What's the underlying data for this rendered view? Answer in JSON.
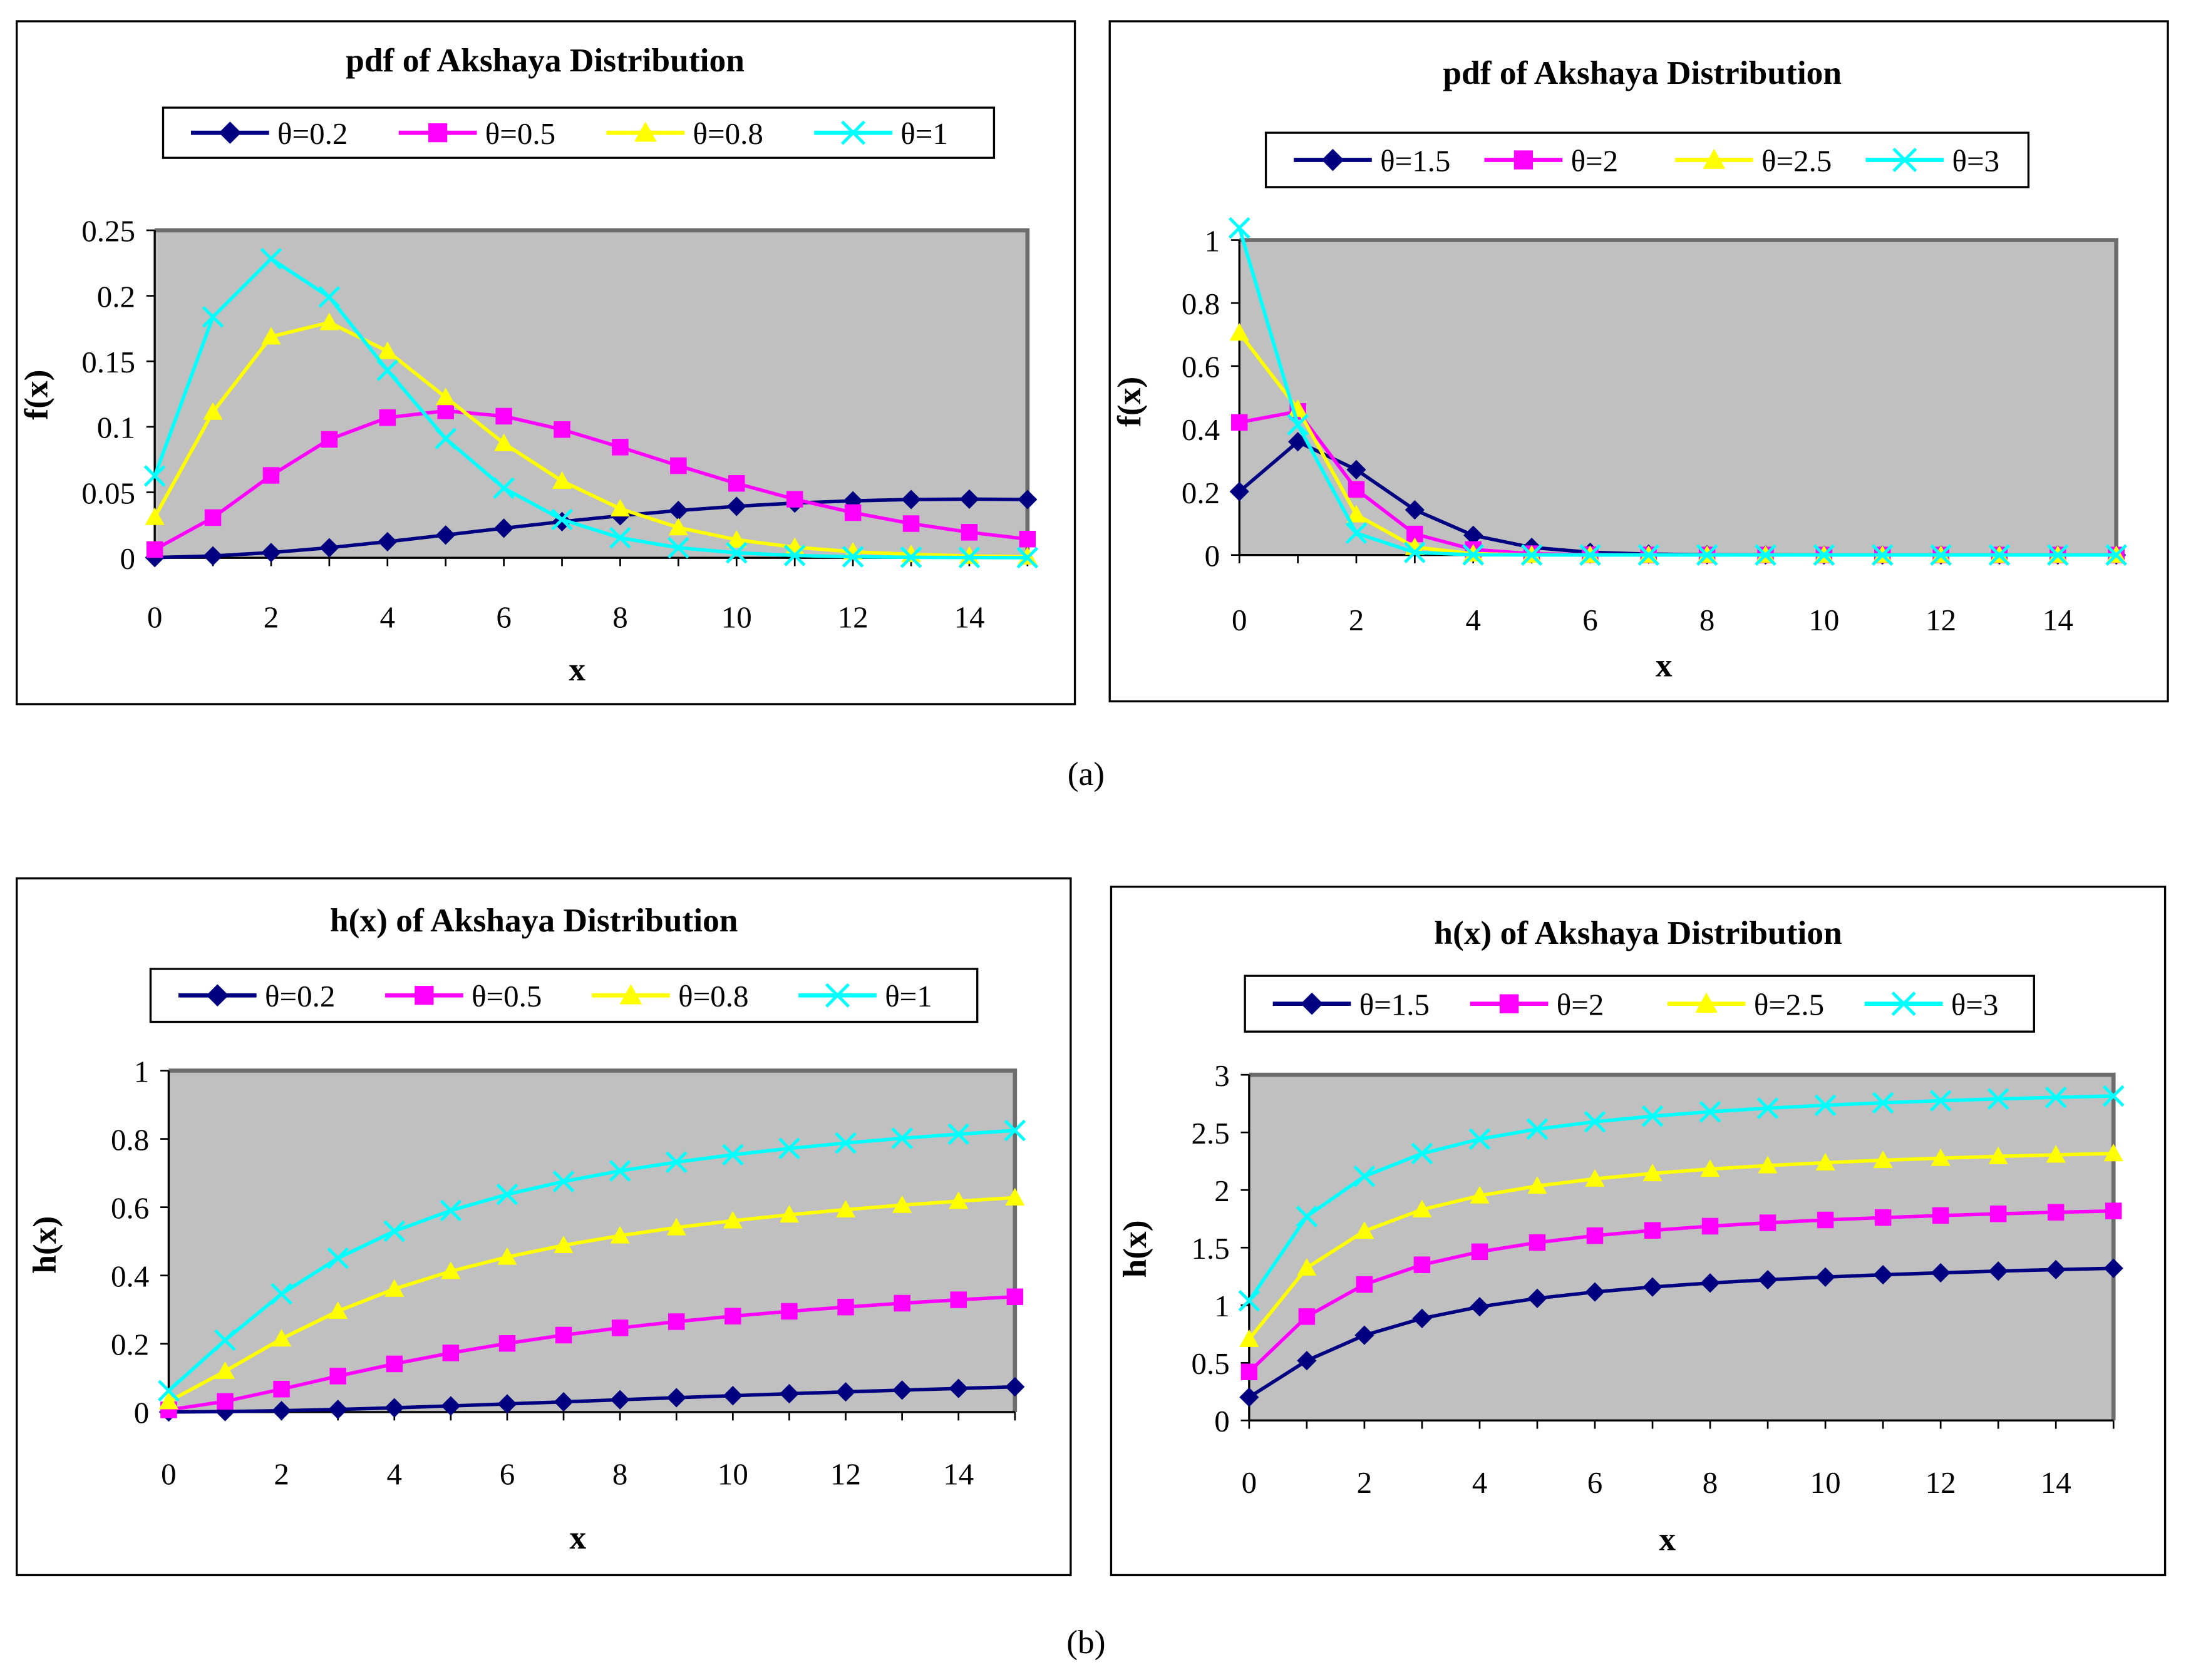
{
  "figure_labels": {
    "a": "(a)",
    "b": "(b)"
  },
  "colors": {
    "series": [
      "#000080",
      "#FF00FF",
      "#FFFF00",
      "#00FFFF"
    ],
    "plot_bg": "#C0C0C0"
  },
  "chart_data": [
    {
      "type": "line",
      "title": "pdf of Akshaya Distribution",
      "xlabel": "x",
      "ylabel": "f(x)",
      "xlim": [
        0,
        15
      ],
      "ylim": [
        0,
        0.25
      ],
      "xticks": [
        "0",
        "2",
        "4",
        "6",
        "8",
        "10",
        "12",
        "14"
      ],
      "yticks": [
        "0",
        "0.05",
        "0.1",
        "0.15",
        "0.2",
        "0.25"
      ],
      "legend": "top",
      "x": [
        0,
        1,
        2,
        3,
        4,
        5,
        6,
        7,
        8,
        9,
        10,
        11,
        12,
        13,
        14,
        15
      ],
      "series": [
        {
          "name": "θ=0.2",
          "marker": "diamond",
          "values": [
            0.0002,
            0.0014,
            0.004,
            0.0077,
            0.0123,
            0.0174,
            0.0226,
            0.0276,
            0.0321,
            0.0361,
            0.0393,
            0.0418,
            0.0435,
            0.0445,
            0.0448,
            0.0445
          ]
        },
        {
          "name": "θ=0.5",
          "marker": "square",
          "values": [
            0.0063,
            0.0307,
            0.0629,
            0.0904,
            0.107,
            0.1122,
            0.1081,
            0.0979,
            0.0845,
            0.0703,
            0.0568,
            0.0447,
            0.0345,
            0.0261,
            0.0195,
            0.0143
          ]
        },
        {
          "name": "θ=0.8",
          "marker": "triangle",
          "values": [
            0.031,
            0.1113,
            0.1688,
            0.1797,
            0.1577,
            0.1225,
            0.0874,
            0.0586,
            0.0375,
            0.0231,
            0.0138,
            0.0081,
            0.0046,
            0.0026,
            0.0014,
            0.0008
          ]
        },
        {
          "name": "θ=1",
          "marker": "x",
          "values": [
            0.0625,
            0.1839,
            0.2283,
            0.1991,
            0.1431,
            0.091,
            0.0532,
            0.0292,
            0.0153,
            0.0077,
            0.0038,
            0.0018,
            0.0008,
            0.0004,
            0.0002,
            0.0001
          ]
        }
      ]
    },
    {
      "type": "line",
      "title": "pdf of Akshaya Distribution",
      "xlabel": "x",
      "ylabel": "f(x)",
      "xlim": [
        0,
        15
      ],
      "ylim": [
        0,
        1
      ],
      "xticks": [
        "0",
        "2",
        "4",
        "6",
        "8",
        "10",
        "12",
        "14"
      ],
      "yticks": [
        "0",
        "0.2",
        "0.4",
        "0.6",
        "0.8",
        "1"
      ],
      "legend": "top",
      "x": [
        0,
        1,
        2,
        3,
        4,
        5,
        6,
        7,
        8,
        9,
        10,
        11,
        12,
        13,
        14,
        15
      ],
      "series": [
        {
          "name": "θ=1.5",
          "marker": "diamond",
          "values": [
            0.2015,
            0.3597,
            0.2709,
            0.1433,
            0.0624,
            0.0241,
            0.0085,
            0.0028,
            0.0009,
            0.0003,
            0.0001,
            0,
            0,
            0,
            0,
            0
          ]
        },
        {
          "name": "θ=2",
          "marker": "square",
          "values": [
            0.4211,
            0.4559,
            0.2083,
            0.0668,
            0.0176,
            0.0041,
            0.0009,
            0.0002,
            0,
            0,
            0,
            0,
            0,
            0,
            0,
            0
          ]
        },
        {
          "name": "θ=2.5",
          "marker": "triangle",
          "values": [
            0.7054,
            0.4632,
            0.1283,
            0.025,
            0.004,
            0.0006,
            0.0001,
            0,
            0,
            0,
            0,
            0,
            0,
            0,
            0,
            0
          ]
        },
        {
          "name": "θ=3",
          "marker": "x",
          "values": [
            1.0385,
            0.4136,
            0.0695,
            0.0082,
            0.0008,
            0.0001,
            0,
            0,
            0,
            0,
            0,
            0,
            0,
            0,
            0,
            0
          ]
        }
      ]
    },
    {
      "type": "line",
      "title": "h(x) of Akshaya Distribution",
      "xlabel": "x",
      "ylabel": "h(x)",
      "xlim": [
        0,
        15
      ],
      "ylim": [
        0,
        1
      ],
      "xticks": [
        "0",
        "2",
        "4",
        "6",
        "8",
        "10",
        "12",
        "14"
      ],
      "yticks": [
        "0",
        "0.2",
        "0.4",
        "0.6",
        "0.8",
        "1"
      ],
      "legend": "top",
      "x": [
        0,
        1,
        2,
        3,
        4,
        5,
        6,
        7,
        8,
        9,
        10,
        11,
        12,
        13,
        14,
        15
      ],
      "series": [
        {
          "name": "θ=0.2",
          "marker": "diamond",
          "values": [
            0.0002,
            0.0014,
            0.004,
            0.0077,
            0.0125,
            0.018,
            0.0238,
            0.0299,
            0.0361,
            0.0421,
            0.048,
            0.0537,
            0.0591,
            0.0643,
            0.0692,
            0.0739
          ]
        },
        {
          "name": "θ=0.5",
          "marker": "square",
          "values": [
            0.0063,
            0.0313,
            0.0672,
            0.1053,
            0.1411,
            0.1731,
            0.2011,
            0.2254,
            0.2465,
            0.2648,
            0.2809,
            0.2951,
            0.3076,
            0.3188,
            0.3288,
            0.3377
          ]
        },
        {
          "name": "θ=0.8",
          "marker": "triangle",
          "values": [
            0.031,
            0.1197,
            0.2147,
            0.2956,
            0.3606,
            0.4124,
            0.4542,
            0.4884,
            0.5166,
            0.5404,
            0.5605,
            0.5779,
            0.5929,
            0.6061,
            0.6177,
            0.628
          ]
        },
        {
          "name": "θ=1",
          "marker": "x",
          "values": [
            0.0625,
            0.2105,
            0.3462,
            0.4507,
            0.5297,
            0.5902,
            0.6375,
            0.6755,
            0.7064,
            0.7321,
            0.7537,
            0.7721,
            0.788,
            0.8019,
            0.814,
            0.8248
          ]
        }
      ]
    },
    {
      "type": "line",
      "title": "h(x) of Akshaya Distribution",
      "xlabel": "x",
      "ylabel": "h(x)",
      "xlim": [
        0,
        15
      ],
      "ylim": [
        0,
        3
      ],
      "xticks": [
        "0",
        "2",
        "4",
        "6",
        "8",
        "10",
        "12",
        "14"
      ],
      "yticks": [
        "0",
        "0.5",
        "1",
        "1.5",
        "2",
        "2.5",
        "3"
      ],
      "legend": "top",
      "x": [
        0,
        1,
        2,
        3,
        4,
        5,
        6,
        7,
        8,
        9,
        10,
        11,
        12,
        13,
        14,
        15
      ],
      "series": [
        {
          "name": "θ=1.5",
          "marker": "diamond",
          "values": [
            0.2015,
            0.5192,
            0.7394,
            0.8852,
            0.9863,
            1.0596,
            1.115,
            1.1582,
            1.1928,
            1.2211,
            1.2446,
            1.2645,
            1.2816,
            1.2963,
            1.3092,
            1.3206
          ]
        },
        {
          "name": "θ=2",
          "marker": "square",
          "values": [
            0.4211,
            0.9014,
            1.1803,
            1.3509,
            1.4641,
            1.5442,
            1.6037,
            1.6496,
            1.686,
            1.7156,
            1.7402,
            1.7608,
            1.7784,
            1.7936,
            1.8069,
            1.8185
          ]
        },
        {
          "name": "θ=2.5",
          "marker": "triangle",
          "values": [
            0.7054,
            1.3242,
            1.6438,
            1.8302,
            1.9509,
            2.0351,
            2.0971,
            2.1445,
            2.1821,
            2.2124,
            2.2375,
            2.2586,
            2.2765,
            2.292,
            2.3054,
            2.3173
          ]
        },
        {
          "name": "θ=3",
          "marker": "x",
          "values": [
            1.0385,
            1.7705,
            2.1192,
            2.3164,
            2.4421,
            2.5291,
            2.5927,
            2.6412,
            2.6794,
            2.7103,
            2.7358,
            2.7572,
            2.7753,
            2.7909,
            2.8045,
            2.8165
          ]
        }
      ]
    }
  ]
}
